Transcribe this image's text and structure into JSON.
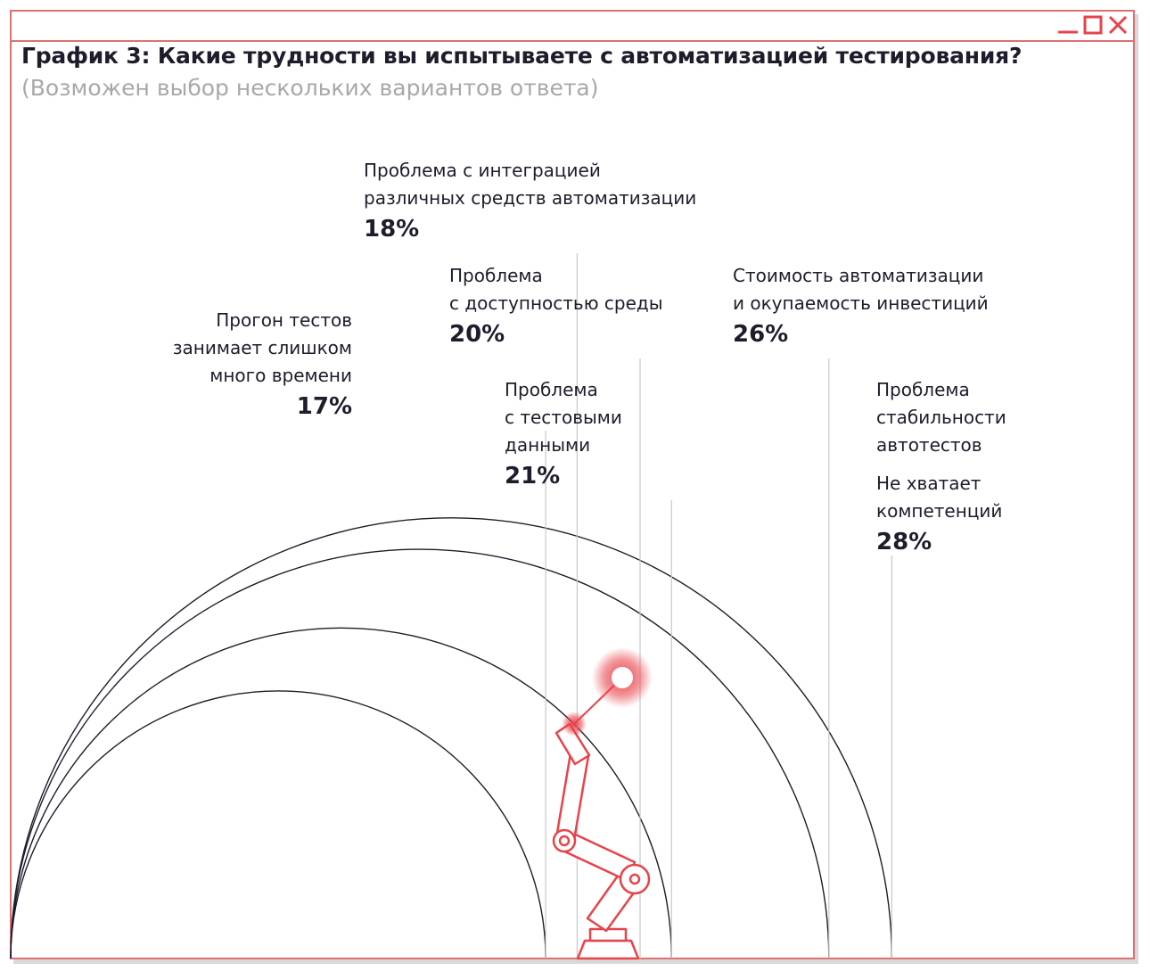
{
  "title": "График 3: Какие трудности вы испытываете с автоматизацией тестирования?",
  "subtitle": "(Возможен выбор нескольких вариантов ответа)",
  "colors": {
    "frame": "#e07070",
    "accent": "#e8434a",
    "arc": "#1d1d2b",
    "leader": "#c8c8c8"
  },
  "window_controls": [
    "minimize-icon",
    "maximize-icon",
    "close-icon"
  ],
  "chart_data": {
    "type": "arc-bubble",
    "title": "График 3: Какие трудности вы испытываете с автоматизацией тестирования?",
    "subtitle": "(Возможен выбор нескольких вариантов ответа)",
    "series": [
      {
        "lines": [
          "Прогон тестов",
          "занимает слишком",
          "много времени"
        ],
        "label": "17%",
        "value": 17
      },
      {
        "lines": [
          "Проблема с интеграцией",
          "различных средств автоматизации"
        ],
        "label": "18%",
        "value": 18
      },
      {
        "lines": [
          "Проблема",
          "с доступностью среды"
        ],
        "label": "20%",
        "value": 20
      },
      {
        "lines": [
          "Проблема",
          "с тестовыми",
          "данными"
        ],
        "label": "21%",
        "value": 21
      },
      {
        "lines": [
          "Стоимость автоматизации",
          "и окупаемость инвестиций"
        ],
        "label": "26%",
        "value": 26
      },
      {
        "lines": [
          "Проблема",
          "стабильности",
          "автотестов",
          "Не хватает",
          "компетенций"
        ],
        "label": "28%",
        "value": 28
      }
    ]
  }
}
